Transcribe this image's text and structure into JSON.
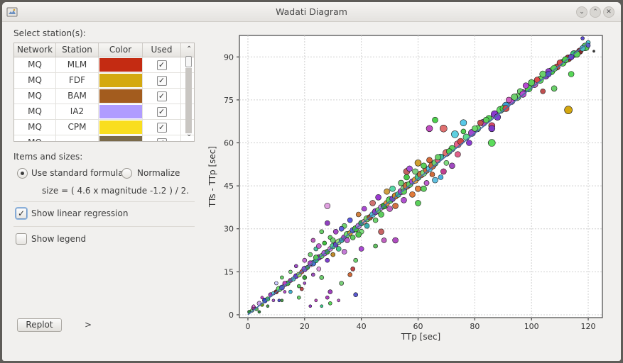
{
  "window": {
    "title": "Wadati Diagram",
    "controls": [
      "chevron-down",
      "chevron-up",
      "close"
    ]
  },
  "stations": {
    "label": "Select station(s):",
    "headers": [
      "Network",
      "Station",
      "Color",
      "Used"
    ],
    "rows": [
      {
        "network": "MQ",
        "station": "MLM",
        "color": "#c42b12",
        "used": true
      },
      {
        "network": "MQ",
        "station": "FDF",
        "color": "#d4a90f",
        "used": true
      },
      {
        "network": "MQ",
        "station": "BAM",
        "color": "#a35c1e",
        "used": true
      },
      {
        "network": "MQ",
        "station": "IA2",
        "color": "#b09cff",
        "used": true
      },
      {
        "network": "MQ",
        "station": "CPM",
        "color": "#f9de1f",
        "used": true
      },
      {
        "network": "MQ",
        "station": "",
        "color": "#7a6a4a",
        "used": true
      }
    ]
  },
  "items": {
    "label": "Items and sizes:",
    "radio_standard": "Use standard formula",
    "radio_normalize": "Normalize",
    "selected": "standard",
    "formula": "size = ( 4.6 x magnitude -1.2 ) / 2."
  },
  "options": {
    "regression_label": "Show linear regression",
    "regression_checked": true,
    "legend_label": "Show legend",
    "legend_checked": false
  },
  "buttons": {
    "replot": "Replot",
    "expand": ">"
  },
  "chart_data": {
    "type": "scatter",
    "xlabel": "TTp [sec]",
    "ylabel": "TTs - TTp [sec]",
    "xlim": [
      -3,
      125
    ],
    "ylim": [
      -1,
      97.5
    ],
    "xticks": [
      0,
      20,
      40,
      60,
      80,
      100,
      120
    ],
    "yticks": [
      0,
      15,
      30,
      45,
      60,
      75,
      90
    ],
    "grid": true,
    "regression": {
      "x": [
        0,
        120
      ],
      "y": [
        0,
        95
      ]
    },
    "points": [
      [
        0.5,
        1,
        "#2a8a3a",
        5
      ],
      [
        1.5,
        1.5,
        "#7dd47a",
        5
      ],
      [
        2,
        2.5,
        "#9b2a8f",
        6
      ],
      [
        3,
        2,
        "#58b858",
        5
      ],
      [
        4,
        4,
        "#c9a0e8",
        6
      ],
      [
        5,
        3.5,
        "#6a9a1a",
        5
      ],
      [
        6,
        5,
        "#2f3fd0",
        7
      ],
      [
        7,
        5.5,
        "#3fcf5f",
        6
      ],
      [
        8,
        7,
        "#a040c0",
        6
      ],
      [
        9,
        7.5,
        "#5fd0e0",
        5
      ],
      [
        10,
        8,
        "#8a2222",
        6
      ],
      [
        11,
        9,
        "#6cde6c",
        8
      ],
      [
        12,
        9.5,
        "#5050d0",
        7
      ],
      [
        13,
        10.5,
        "#e070e0",
        6
      ],
      [
        14,
        11,
        "#40b040",
        7
      ],
      [
        15,
        12,
        "#9e3a9e",
        6
      ],
      [
        16,
        12.5,
        "#4fc0c0",
        6
      ],
      [
        17,
        13.5,
        "#6d2dcf",
        7
      ],
      [
        18,
        14,
        "#a0e060",
        7
      ],
      [
        19,
        15,
        "#c05050",
        6
      ],
      [
        20,
        16,
        "#8a52d6",
        8
      ],
      [
        21,
        16.5,
        "#3aa33a",
        6
      ],
      [
        22,
        17.5,
        "#e09ae0",
        7
      ],
      [
        23,
        18,
        "#4a7ad6",
        8
      ],
      [
        24,
        19,
        "#2cc07a",
        7
      ],
      [
        25,
        20,
        "#8f28b0",
        8
      ],
      [
        26,
        20.5,
        "#66cc66",
        7
      ],
      [
        27,
        21.5,
        "#b060e0",
        8
      ],
      [
        28,
        22,
        "#3e9e3e",
        7
      ],
      [
        29,
        23,
        "#d080d0",
        7
      ],
      [
        30,
        24,
        "#50d090",
        8
      ],
      [
        31,
        24.5,
        "#6a3ad0",
        7
      ],
      [
        32,
        25.5,
        "#9fe07f",
        8
      ],
      [
        33,
        26,
        "#3ab0b0",
        7
      ],
      [
        34,
        27,
        "#a846c6",
        8
      ],
      [
        35,
        28,
        "#74dd74",
        9
      ],
      [
        36,
        28.5,
        "#d0a030",
        7
      ],
      [
        37,
        29.5,
        "#5e5ee0",
        8
      ],
      [
        38,
        30,
        "#40c040",
        9
      ],
      [
        39,
        31,
        "#b87ad8",
        8
      ],
      [
        40,
        32,
        "#2e9f62",
        8
      ],
      [
        41,
        32.5,
        "#e0a0a0",
        7
      ],
      [
        42,
        33.5,
        "#7bd36b",
        9
      ],
      [
        43,
        34,
        "#a0522d",
        8
      ],
      [
        44,
        35,
        "#55c2d5",
        8
      ],
      [
        45,
        36,
        "#8d3dc6",
        9
      ],
      [
        46,
        36.5,
        "#68d068",
        8
      ],
      [
        47,
        37.5,
        "#c080e0",
        8
      ],
      [
        48,
        38,
        "#3aa03a",
        9
      ],
      [
        49,
        39,
        "#f09040",
        8
      ],
      [
        50,
        40,
        "#5bd35b",
        10
      ],
      [
        51,
        40.5,
        "#7e40d0",
        8
      ],
      [
        52,
        41.5,
        "#d08a2a",
        9
      ],
      [
        53,
        42,
        "#40c0a0",
        8
      ],
      [
        54,
        43,
        "#b04ad0",
        9
      ],
      [
        55,
        44,
        "#8ad88a",
        9
      ],
      [
        56,
        45,
        "#c87040",
        10
      ],
      [
        57,
        45.5,
        "#60d060",
        9
      ],
      [
        58,
        46.5,
        "#a84fd8",
        8
      ],
      [
        59,
        47,
        "#e0a040",
        9
      ],
      [
        60,
        48,
        "#46c886",
        9
      ],
      [
        61,
        49,
        "#c0703a",
        10
      ],
      [
        62,
        49.5,
        "#7fdc7f",
        9
      ],
      [
        63,
        50.5,
        "#d06a3a",
        9
      ],
      [
        64,
        51,
        "#58c8e8",
        9
      ],
      [
        65,
        52,
        "#c46a3a",
        10
      ],
      [
        66,
        53,
        "#6ed06e",
        9
      ],
      [
        67,
        54,
        "#e06080",
        8
      ],
      [
        68,
        55,
        "#3fbf9f",
        9
      ],
      [
        70,
        56.5,
        "#e07070",
        10
      ],
      [
        72,
        58,
        "#5cd05c",
        9
      ],
      [
        74,
        59.5,
        "#e8608a",
        10
      ],
      [
        75,
        60.5,
        "#d04848",
        9
      ],
      [
        77,
        62,
        "#5fdc8f",
        9
      ],
      [
        79,
        63.5,
        "#a04ad0",
        10
      ],
      [
        81,
        65,
        "#67d667",
        9
      ],
      [
        83,
        67,
        "#c04cc0",
        10
      ],
      [
        85,
        68.5,
        "#56d056",
        9
      ],
      [
        87,
        70,
        "#8a3ad0",
        10
      ],
      [
        89,
        71.5,
        "#6ae06a",
        10
      ],
      [
        91,
        73,
        "#3c9fd0",
        10
      ],
      [
        93,
        74.5,
        "#c050d0",
        9
      ],
      [
        95,
        76,
        "#70d870",
        10
      ],
      [
        97,
        77.5,
        "#9040c0",
        9
      ],
      [
        99,
        79,
        "#50d050",
        10
      ],
      [
        101,
        80.5,
        "#d060c0",
        10
      ],
      [
        103,
        82,
        "#60dc60",
        10
      ],
      [
        105,
        83.5,
        "#8a3cc0",
        10
      ],
      [
        107,
        85,
        "#4bd04b",
        10
      ],
      [
        109,
        86.5,
        "#c04848",
        9
      ],
      [
        111,
        88,
        "#58d058",
        10
      ],
      [
        113,
        89.5,
        "#a63636",
        10
      ],
      [
        115,
        91,
        "#3cc07c",
        10
      ],
      [
        117,
        92,
        "#8b2a2a",
        9
      ],
      [
        119,
        93.5,
        "#56d056",
        11
      ],
      [
        120,
        95,
        "#4ad0d0",
        6
      ],
      [
        118,
        96.5,
        "#5a4ad0",
        5
      ],
      [
        122,
        92,
        "#3c3c3c",
        3
      ],
      [
        2,
        3,
        "#e070e0",
        4
      ],
      [
        4,
        1,
        "#2a8a3a",
        4
      ],
      [
        5,
        6,
        "#c040c0",
        4
      ],
      [
        7,
        3,
        "#4a9a4a",
        4
      ],
      [
        9,
        5,
        "#ad5ad0",
        4
      ],
      [
        10,
        11,
        "#c9c9ff",
        5
      ],
      [
        11,
        5,
        "#5050d0",
        4
      ],
      [
        12,
        13,
        "#6ad06a",
        5
      ],
      [
        13,
        8,
        "#b04cc0",
        4
      ],
      [
        15,
        15,
        "#7ad87a",
        5
      ],
      [
        15,
        8,
        "#40b0d0",
        5
      ],
      [
        17,
        17,
        "#9c4ac6",
        5
      ],
      [
        18,
        10,
        "#58c858",
        5
      ],
      [
        20,
        19,
        "#c76ad6",
        6
      ],
      [
        20,
        13,
        "#3a9f3a",
        6
      ],
      [
        22,
        21,
        "#6fd06f",
        6
      ],
      [
        23,
        14,
        "#a050c0",
        5
      ],
      [
        24,
        23,
        "#4fc0a0",
        6
      ],
      [
        25,
        16,
        "#e09ae0",
        6
      ],
      [
        27,
        25,
        "#40c040",
        6
      ],
      [
        28,
        19,
        "#7e40d0",
        6
      ],
      [
        29,
        27,
        "#5fd05f",
        6
      ],
      [
        30,
        21,
        "#c08a2a",
        6
      ],
      [
        31,
        29,
        "#a64ac6",
        7
      ],
      [
        32,
        23,
        "#48c888",
        7
      ],
      [
        34,
        31,
        "#6fd06f",
        7
      ],
      [
        35,
        26,
        "#c060d0",
        7
      ],
      [
        36,
        33,
        "#5a5ae0",
        7
      ],
      [
        37,
        27,
        "#5ed05e",
        7
      ],
      [
        39,
        35,
        "#d08040",
        7
      ],
      [
        40,
        29,
        "#7bdc7b",
        7
      ],
      [
        41,
        37,
        "#a94ad2",
        7
      ],
      [
        42,
        31,
        "#3ab0b0",
        7
      ],
      [
        44,
        39,
        "#d07070",
        8
      ],
      [
        45,
        33,
        "#6ed26e",
        7
      ],
      [
        46,
        41,
        "#9a3ad0",
        8
      ],
      [
        47,
        35,
        "#5ecc5e",
        8
      ],
      [
        49,
        43,
        "#d0a040",
        8
      ],
      [
        50,
        37,
        "#c060c0",
        8
      ],
      [
        51,
        44,
        "#58d8a8",
        8
      ],
      [
        52,
        38,
        "#d27040",
        8
      ],
      [
        54,
        46,
        "#6fd06f",
        8
      ],
      [
        55,
        40,
        "#b050d0",
        8
      ],
      [
        56,
        48,
        "#48c848",
        8
      ],
      [
        58,
        42,
        "#e07a3a",
        8
      ],
      [
        59,
        50,
        "#7fd07f",
        8
      ],
      [
        60,
        44,
        "#c04848",
        8
      ],
      [
        62,
        52,
        "#5ad05a",
        8
      ],
      [
        63,
        46,
        "#9c40d0",
        7
      ],
      [
        64,
        54,
        "#d06a3a",
        8
      ],
      [
        66,
        47,
        "#60c0e0",
        8
      ],
      [
        67,
        55,
        "#6ad06a",
        8
      ],
      [
        69,
        50,
        "#c04090",
        8
      ],
      [
        71,
        57,
        "#4cd04c",
        8
      ],
      [
        72,
        52,
        "#a04ac0",
        8
      ],
      [
        74,
        56,
        "#e0608a",
        8
      ],
      [
        76,
        64,
        "#4fd04f",
        7
      ],
      [
        78,
        60,
        "#8a3ad0",
        8
      ],
      [
        80,
        65,
        "#6cd86c",
        8
      ],
      [
        82,
        67,
        "#c05050",
        8
      ],
      [
        84,
        68,
        "#5ad05a",
        8
      ],
      [
        86,
        66,
        "#d94a6a",
        9
      ],
      [
        88,
        69,
        "#7d42d2",
        9
      ],
      [
        90,
        72,
        "#4ad04a",
        9
      ],
      [
        92,
        75,
        "#d060c0",
        8
      ],
      [
        94,
        76,
        "#7a3ac0",
        9
      ],
      [
        96,
        78,
        "#6ed06e",
        8
      ],
      [
        98,
        80,
        "#b64ad0",
        8
      ],
      [
        100,
        81,
        "#5ed05e",
        9
      ],
      [
        102,
        82,
        "#e04a4a",
        8
      ],
      [
        104,
        84,
        "#6ad06a",
        9
      ],
      [
        106,
        85,
        "#9040c8",
        8
      ],
      [
        108,
        86,
        "#5bd25b",
        9
      ],
      [
        110,
        88,
        "#d44b4b",
        8
      ],
      [
        112,
        89,
        "#4cd04c",
        9
      ],
      [
        114,
        90,
        "#6a3ad0",
        8
      ],
      [
        116,
        91,
        "#5ad05a",
        9
      ],
      [
        118,
        93,
        "#4ac0c0",
        8
      ],
      [
        120,
        94,
        "#5e5ed0",
        6
      ],
      [
        86,
        60,
        "#5cdc5c",
        10
      ],
      [
        86,
        65,
        "#7d3bc9",
        9
      ],
      [
        94,
        76,
        "#6ed06e",
        9
      ],
      [
        91,
        72,
        "#d44b4b",
        9
      ],
      [
        113,
        71.5,
        "#d4a70f",
        11
      ],
      [
        108,
        79,
        "#6ad06a",
        8
      ],
      [
        104,
        78,
        "#c05050",
        7
      ],
      [
        114,
        84,
        "#58d858",
        8
      ],
      [
        106,
        84,
        "#5a4ad0",
        8
      ],
      [
        97,
        77,
        "#b64ad0",
        9
      ],
      [
        76,
        67,
        "#58c8e8",
        9
      ],
      [
        73,
        63,
        "#60d0e0",
        10
      ],
      [
        69,
        65,
        "#e07070",
        10
      ],
      [
        66,
        68,
        "#4cd04c",
        8
      ],
      [
        64,
        65,
        "#c04cc0",
        9
      ],
      [
        60,
        53,
        "#d0a030",
        9
      ],
      [
        56,
        50,
        "#c06060",
        9
      ],
      [
        55,
        43,
        "#5ad05a",
        8
      ],
      [
        57,
        51,
        "#a84fd8",
        8
      ],
      [
        60,
        44,
        "#e08040",
        8
      ],
      [
        62,
        44,
        "#5ed05e",
        8
      ],
      [
        63,
        46,
        "#c060d0",
        7
      ],
      [
        68,
        48,
        "#4ab0e0",
        7
      ],
      [
        65,
        49,
        "#d06a3a",
        7
      ],
      [
        70,
        53,
        "#7fdc7f",
        7
      ],
      [
        28,
        38,
        "#e0a0e0",
        8
      ],
      [
        13,
        11,
        "#c040c0",
        6
      ],
      [
        26,
        13,
        "#6fcf6f",
        6
      ],
      [
        29,
        8,
        "#a040c0",
        6
      ],
      [
        28,
        6,
        "#b040c0",
        5
      ],
      [
        19,
        9,
        "#c04848",
        5
      ],
      [
        20,
        11,
        "#a050c0",
        4
      ],
      [
        18,
        6,
        "#6ad06a",
        5
      ],
      [
        24,
        5,
        "#c04cc0",
        4
      ],
      [
        37,
        16,
        "#c04848",
        6
      ],
      [
        38,
        7,
        "#5a5ad0",
        6
      ],
      [
        29,
        4,
        "#58d858",
        5
      ],
      [
        32,
        5,
        "#c060d0",
        4
      ],
      [
        26,
        3,
        "#3fcf8f",
        4
      ],
      [
        22,
        3,
        "#9a3ad0",
        4
      ],
      [
        33,
        11,
        "#7ad07a",
        6
      ],
      [
        36,
        14,
        "#d06a3a",
        6
      ],
      [
        38,
        19,
        "#6ed26e",
        6
      ],
      [
        40,
        23,
        "#a94ad2",
        7
      ],
      [
        45,
        24,
        "#60c060",
        6
      ],
      [
        48,
        26,
        "#c060c0",
        7
      ],
      [
        52,
        26,
        "#b04cc0",
        8
      ],
      [
        60,
        39,
        "#5ad05a",
        8
      ],
      [
        47,
        29,
        "#c86464",
        8
      ],
      [
        39,
        28,
        "#4ec44e",
        8
      ],
      [
        34,
        22,
        "#c47ad6",
        7
      ],
      [
        33,
        30,
        "#5e5ee0",
        7
      ],
      [
        30,
        26,
        "#6fd06f",
        7
      ],
      [
        25,
        24,
        "#c060d0",
        7
      ],
      [
        24,
        20,
        "#58c858",
        7
      ],
      [
        22,
        18,
        "#a04ac0",
        7
      ],
      [
        23,
        26,
        "#c060c0",
        6
      ],
      [
        26,
        29,
        "#6ad06a",
        6
      ],
      [
        28,
        32,
        "#9040c0",
        7
      ],
      [
        12,
        5,
        "#4a9a4a",
        4
      ]
    ]
  }
}
